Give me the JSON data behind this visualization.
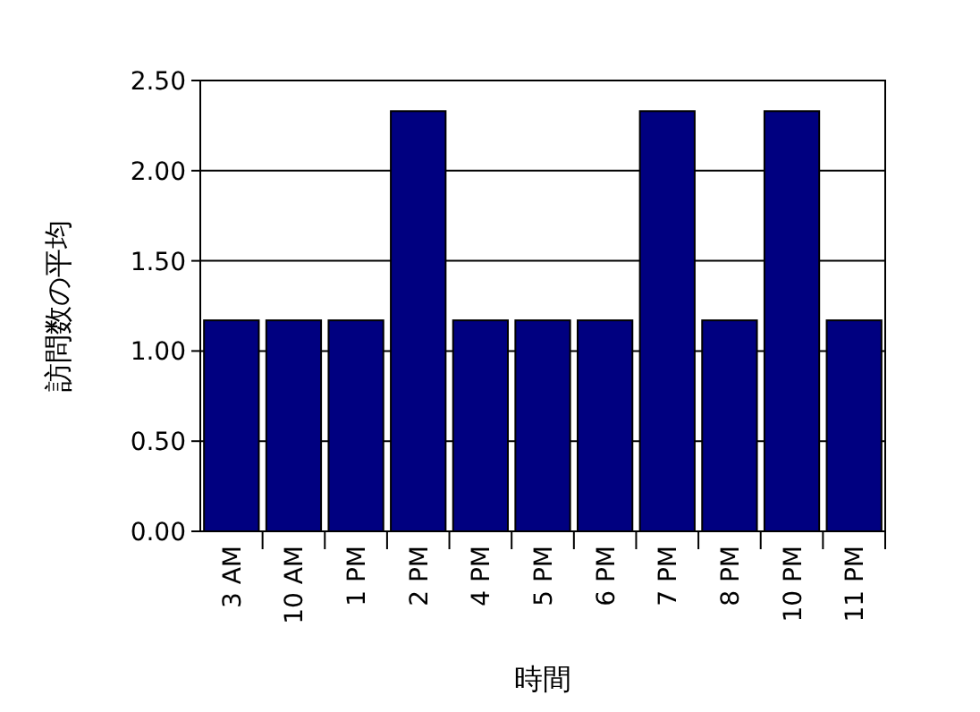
{
  "chart_data": {
    "type": "bar",
    "xlabel": "時間",
    "ylabel": "訪問数の平均",
    "categories": [
      "3 AM",
      "10 AM",
      "1 PM",
      "2 PM",
      "4 PM",
      "5 PM",
      "6 PM",
      "7 PM",
      "8 PM",
      "10 PM",
      "11 PM"
    ],
    "values": [
      1.17,
      1.17,
      1.17,
      2.33,
      1.17,
      1.17,
      1.17,
      2.33,
      1.17,
      2.33,
      1.17
    ],
    "color": "#000080",
    "ylim": [
      0,
      2.5
    ],
    "yticks": [
      {
        "value": 0,
        "label": "0.00"
      },
      {
        "value": 0.5,
        "label": "0.50"
      },
      {
        "value": 1,
        "label": "1.00"
      },
      {
        "value": 1.5,
        "label": "1.50"
      },
      {
        "value": 2,
        "label": "2.00"
      },
      {
        "value": 2.5,
        "label": "2.50"
      }
    ],
    "grid": "y"
  }
}
